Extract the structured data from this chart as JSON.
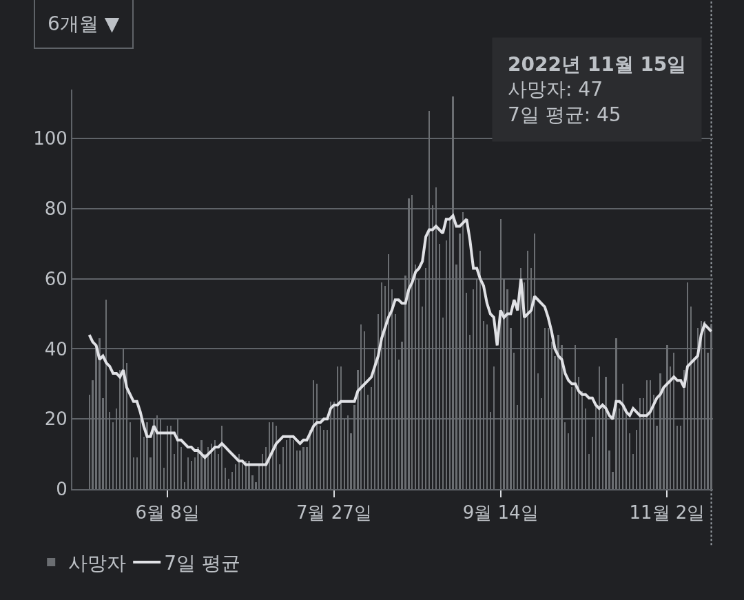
{
  "chart_data": {
    "type": "bar",
    "x": [
      "2022-05-16",
      "2022-05-17",
      "2022-05-18",
      "2022-05-19",
      "2022-05-20",
      "2022-05-21",
      "2022-05-22",
      "2022-05-23",
      "2022-05-24",
      "2022-05-25",
      "2022-05-26",
      "2022-05-27",
      "2022-05-28",
      "2022-05-29",
      "2022-05-30",
      "2022-05-31",
      "2022-06-01",
      "2022-06-02",
      "2022-06-03",
      "2022-06-04",
      "2022-06-05",
      "2022-06-06",
      "2022-06-07",
      "2022-06-08",
      "2022-06-09",
      "2022-06-10",
      "2022-06-11",
      "2022-06-12",
      "2022-06-13",
      "2022-06-14",
      "2022-06-15",
      "2022-06-16",
      "2022-06-17",
      "2022-06-18",
      "2022-06-19",
      "2022-06-20",
      "2022-06-21",
      "2022-06-22",
      "2022-06-23",
      "2022-06-24",
      "2022-06-25",
      "2022-06-26",
      "2022-06-27",
      "2022-06-28",
      "2022-06-29",
      "2022-06-30",
      "2022-07-01",
      "2022-07-02",
      "2022-07-03",
      "2022-07-04",
      "2022-07-05",
      "2022-07-06",
      "2022-07-07",
      "2022-07-08",
      "2022-07-09",
      "2022-07-10",
      "2022-07-11",
      "2022-07-12",
      "2022-07-13",
      "2022-07-14",
      "2022-07-15",
      "2022-07-16",
      "2022-07-17",
      "2022-07-18",
      "2022-07-19",
      "2022-07-20",
      "2022-07-21",
      "2022-07-22",
      "2022-07-23",
      "2022-07-24",
      "2022-07-25",
      "2022-07-26",
      "2022-07-27",
      "2022-07-28",
      "2022-07-29",
      "2022-07-30",
      "2022-07-31",
      "2022-08-01",
      "2022-08-02",
      "2022-08-03",
      "2022-08-04",
      "2022-08-05",
      "2022-08-06",
      "2022-08-07",
      "2022-08-08",
      "2022-08-09",
      "2022-08-10",
      "2022-08-11",
      "2022-08-12",
      "2022-08-13",
      "2022-08-14",
      "2022-08-15",
      "2022-08-16",
      "2022-08-17",
      "2022-08-18",
      "2022-08-19",
      "2022-08-20",
      "2022-08-21",
      "2022-08-22",
      "2022-08-23",
      "2022-08-24",
      "2022-08-25",
      "2022-08-26",
      "2022-08-27",
      "2022-08-28",
      "2022-08-29",
      "2022-08-30",
      "2022-08-31",
      "2022-09-01",
      "2022-09-02",
      "2022-09-03",
      "2022-09-04",
      "2022-09-05",
      "2022-09-06",
      "2022-09-07",
      "2022-09-08",
      "2022-09-09",
      "2022-09-10",
      "2022-09-11",
      "2022-09-12",
      "2022-09-13",
      "2022-09-14",
      "2022-09-15",
      "2022-09-16",
      "2022-09-17",
      "2022-09-18",
      "2022-09-19",
      "2022-09-20",
      "2022-09-21",
      "2022-09-22",
      "2022-09-23",
      "2022-09-24",
      "2022-09-25",
      "2022-09-26",
      "2022-09-27",
      "2022-09-28",
      "2022-09-29",
      "2022-09-30",
      "2022-10-01",
      "2022-10-02",
      "2022-10-03",
      "2022-10-04",
      "2022-10-05",
      "2022-10-06",
      "2022-10-07",
      "2022-10-08",
      "2022-10-09",
      "2022-10-10",
      "2022-10-11",
      "2022-10-12",
      "2022-10-13",
      "2022-10-14",
      "2022-10-15",
      "2022-10-16",
      "2022-10-17",
      "2022-10-18",
      "2022-10-19",
      "2022-10-20",
      "2022-10-21",
      "2022-10-22",
      "2022-10-23",
      "2022-10-24",
      "2022-10-25",
      "2022-10-26",
      "2022-10-27",
      "2022-10-28",
      "2022-10-29",
      "2022-10-30",
      "2022-10-31",
      "2022-11-01",
      "2022-11-02",
      "2022-11-03",
      "2022-11-04",
      "2022-11-05",
      "2022-11-06",
      "2022-11-07",
      "2022-11-08",
      "2022-11-09",
      "2022-11-10",
      "2022-11-11",
      "2022-11-12",
      "2022-11-13",
      "2022-11-14",
      "2022-11-15"
    ],
    "series": [
      {
        "name": "사망자",
        "color": "#6b6e72",
        "values": [
          27,
          31,
          40,
          43,
          26,
          54,
          22,
          19,
          23,
          34,
          40,
          36,
          19,
          9,
          9,
          20,
          15,
          19,
          9,
          20,
          21,
          20,
          6,
          18,
          18,
          10,
          20,
          12,
          2,
          9,
          8,
          9,
          12,
          14,
          10,
          12,
          13,
          14,
          10,
          18,
          6,
          3,
          5,
          7,
          10,
          7,
          8,
          8,
          4,
          2,
          7,
          10,
          12,
          19,
          19,
          18,
          7,
          12,
          14,
          15,
          14,
          11,
          11,
          12,
          12,
          17,
          31,
          30,
          18,
          17,
          17,
          25,
          25,
          35,
          35,
          20,
          21,
          16,
          24,
          34,
          47,
          45,
          27,
          29,
          40,
          50,
          59,
          58,
          67,
          57,
          50,
          37,
          42,
          61,
          83,
          84,
          64,
          60,
          52,
          63,
          108,
          81,
          86,
          70,
          49,
          71,
          77,
          112,
          64,
          73,
          79,
          56,
          44,
          57,
          60,
          68,
          48,
          47,
          22,
          35,
          0,
          77,
          60,
          57,
          46,
          39,
          24,
          63,
          59,
          68,
          63,
          73,
          33,
          26,
          46,
          46,
          42,
          38,
          44,
          41,
          19,
          16,
          29,
          41,
          32,
          28,
          23,
          10,
          15,
          24,
          35,
          24,
          32,
          11,
          5,
          43,
          23,
          30,
          23,
          16,
          10,
          17,
          26,
          26,
          31,
          31,
          27,
          18,
          33,
          29,
          41,
          35,
          39,
          18,
          18,
          34,
          59,
          52,
          37,
          46,
          48,
          48,
          39,
          47
        ]
      },
      {
        "name": "7일 평균",
        "type": "line",
        "color": "#e0e1e5",
        "values": [
          44,
          42,
          41,
          37,
          38,
          36,
          35,
          33,
          33,
          32,
          34,
          29,
          27,
          25,
          25,
          22,
          18,
          15,
          15,
          18,
          16,
          16,
          16,
          16,
          16,
          16,
          14,
          14,
          13,
          12,
          12,
          11,
          11,
          10,
          9,
          10,
          11,
          12,
          12,
          13,
          12,
          11,
          10,
          9,
          8,
          8,
          7,
          7,
          7,
          7,
          7,
          7,
          7,
          9,
          11,
          13,
          14,
          15,
          15,
          15,
          15,
          14,
          13,
          14,
          14,
          16,
          18,
          19,
          19,
          20,
          20,
          23,
          24,
          24,
          25,
          25,
          25,
          25,
          25,
          28,
          29,
          30,
          31,
          32,
          35,
          38,
          43,
          46,
          49,
          51,
          54,
          54,
          53,
          53,
          57,
          59,
          62,
          63,
          65,
          72,
          74,
          74,
          75,
          74,
          73,
          77,
          77,
          78,
          75,
          75,
          76,
          77,
          71,
          63,
          63,
          60,
          58,
          53,
          50,
          49,
          41,
          51,
          49,
          50,
          50,
          54,
          51,
          60,
          49,
          50,
          51,
          55,
          54,
          53,
          52,
          49,
          45,
          40,
          38,
          37,
          33,
          31,
          30,
          30,
          28,
          27,
          27,
          26,
          26,
          24,
          23,
          24,
          23,
          21,
          20,
          25,
          25,
          24,
          22,
          21,
          23,
          22,
          21,
          21,
          21,
          22,
          24,
          26,
          27,
          29,
          30,
          31,
          32,
          31,
          31,
          29,
          35,
          36,
          37,
          38,
          44,
          47,
          46,
          45
        ]
      }
    ],
    "xlim": [
      "2022-05-11",
      "2022-11-15T12:00"
    ],
    "xticks": [
      {
        "value": "2022-06-08",
        "label": "6월 8일"
      },
      {
        "value": "2022-07-27",
        "label": "7월 27일"
      },
      {
        "value": "2022-09-14",
        "label": "9월 14일"
      },
      {
        "value": "2022-11-02",
        "label": "11월 2일"
      }
    ],
    "ylim": [
      0,
      114
    ],
    "yticks": [
      0,
      20,
      40,
      60,
      80,
      100
    ],
    "grid": "y",
    "legend": "bottom left",
    "ref_lines": [
      {
        "axis": "x",
        "value": "2022-11-15",
        "color": "#9aa0a6",
        "line_style": "dotted"
      }
    ],
    "annotations": [
      "6개월 ▼",
      "2022년 11월 15일",
      "사망자: 47",
      "7일 평균: 45"
    ]
  }
}
